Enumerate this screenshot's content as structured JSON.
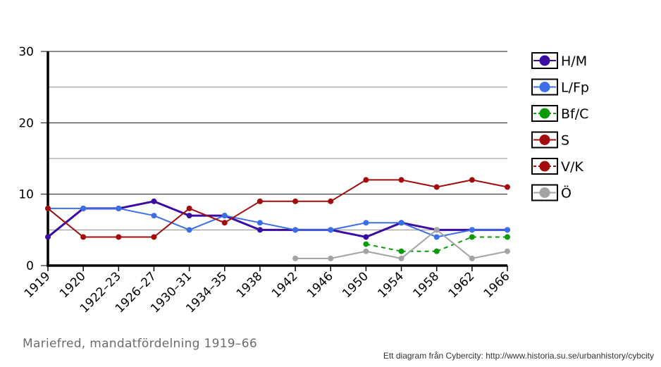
{
  "chart_data": {
    "type": "line",
    "categories": [
      "1919",
      "1920",
      "1922–23",
      "1926–27",
      "1930–31",
      "1934–35",
      "1938",
      "1942",
      "1946",
      "1950",
      "1954",
      "1958",
      "1962",
      "1966"
    ],
    "ylim": [
      0,
      30
    ],
    "yticks": [
      0,
      10,
      20,
      30
    ],
    "grid": true,
    "legend_position": "right",
    "series": [
      {
        "name": "H/M",
        "color": "#3a0ca3",
        "dashed": false,
        "thick": true,
        "values": [
          4,
          8,
          8,
          9,
          7,
          7,
          5,
          5,
          5,
          4,
          6,
          5,
          5,
          5
        ]
      },
      {
        "name": "L/Fp",
        "color": "#3b6fe8",
        "dashed": false,
        "thick": false,
        "values": [
          8,
          8,
          8,
          7,
          5,
          7,
          6,
          5,
          5,
          6,
          6,
          4,
          5,
          5
        ]
      },
      {
        "name": "Bf/C",
        "color": "#0a9a0a",
        "dashed": true,
        "thick": false,
        "values": [
          null,
          null,
          null,
          null,
          null,
          null,
          null,
          null,
          null,
          3,
          2,
          2,
          4,
          4
        ]
      },
      {
        "name": "S",
        "color": "#a30c0c",
        "dashed": false,
        "thick": false,
        "values": [
          8,
          4,
          4,
          4,
          8,
          6,
          9,
          9,
          9,
          12,
          12,
          11,
          12,
          11
        ]
      },
      {
        "name": "V/K",
        "color": "#a30c0c",
        "dashed": true,
        "thick": false,
        "values": [
          null,
          null,
          null,
          null,
          null,
          null,
          null,
          null,
          null,
          null,
          null,
          null,
          null,
          null
        ]
      },
      {
        "name": "Ö",
        "color": "#a3a3a3",
        "dashed": false,
        "thick": false,
        "values": [
          null,
          null,
          null,
          null,
          null,
          null,
          null,
          1,
          1,
          2,
          1,
          5,
          1,
          2
        ]
      }
    ]
  },
  "caption": "Mariefred, mandatfördelning 1919–66",
  "credit": "Ett diagram från Cybercity: http://www.historia.su.se/urbanhistory/cybcity"
}
